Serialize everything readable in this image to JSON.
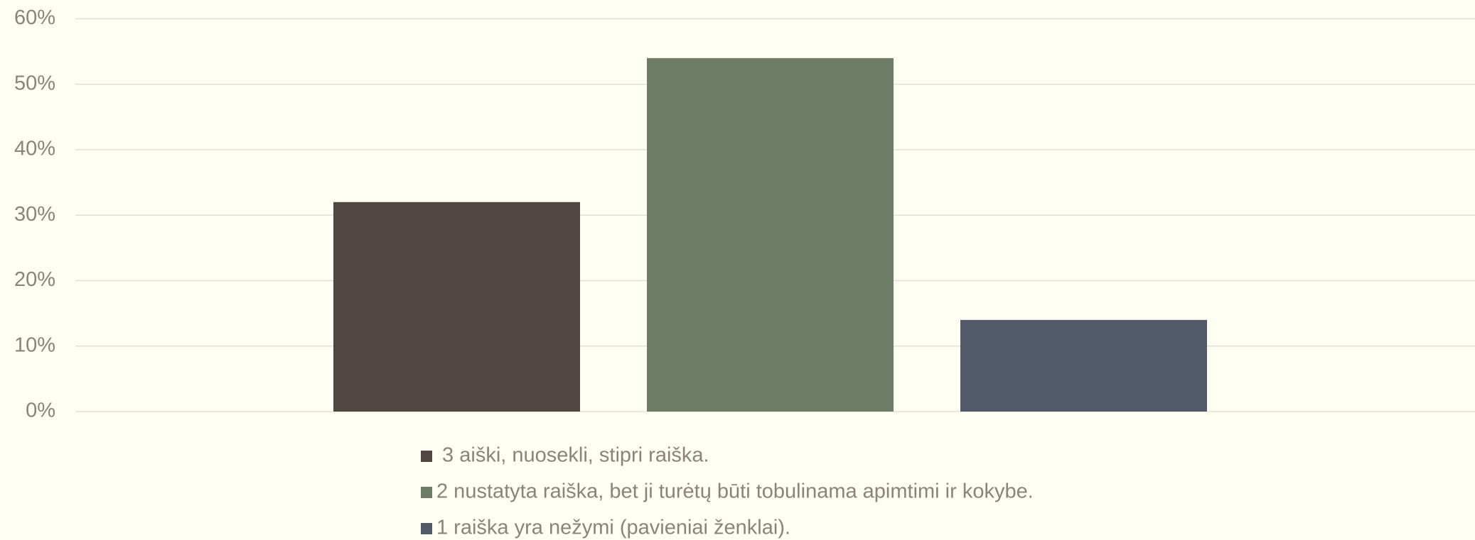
{
  "chart_data": {
    "type": "bar",
    "categories": [
      null
    ],
    "series": [
      {
        "name": " 3 aiški, nuosekli, stipri raiška.",
        "color": "#504742",
        "values": [
          32
        ]
      },
      {
        "name": "2 nustatyta raiška, bet ji turėtų būti tobulinama apimtimi ir kokybe.",
        "color": "#6d7c65",
        "values": [
          54
        ]
      },
      {
        "name": "1 raiška yra nežymi (pavieniai ženklai).",
        "color": "#525969",
        "values": [
          14
        ]
      }
    ],
    "ylim": [
      0,
      60
    ],
    "yticks": [
      {
        "value": 0,
        "label": "0%"
      },
      {
        "value": 10,
        "label": "10%"
      },
      {
        "value": 20,
        "label": "20%"
      },
      {
        "value": 30,
        "label": "30%"
      },
      {
        "value": 40,
        "label": "40%"
      },
      {
        "value": 50,
        "label": "50%"
      },
      {
        "value": 60,
        "label": "60%"
      }
    ],
    "grid": true,
    "legend": "bottom"
  }
}
